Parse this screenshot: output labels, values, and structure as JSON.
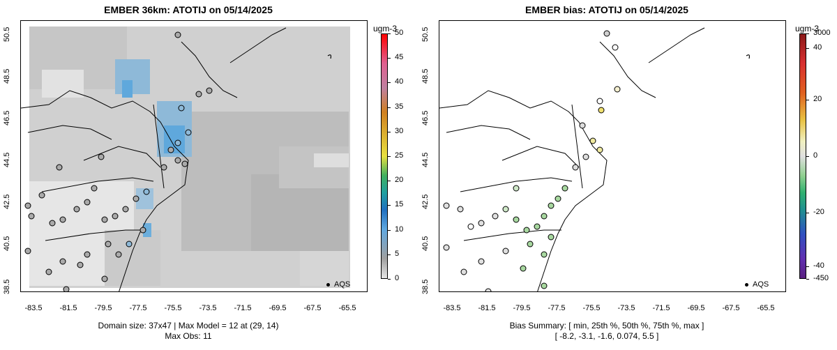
{
  "left": {
    "title": "EMBER 36km: ATOTIJ on 05/14/2025",
    "footer_line1": "Domain size: 37x47 | Max Model = 12 at (29, 14)",
    "footer_line2": "Max Obs: 11",
    "legend_unit": "ugm-3",
    "legend_ticks": [
      "50",
      "45",
      "40",
      "35",
      "30",
      "25",
      "20",
      "15",
      "10",
      "5",
      "0"
    ],
    "legend_values": [
      50,
      45,
      40,
      35,
      30,
      25,
      20,
      15,
      10,
      5,
      0
    ],
    "site_label": "AQS"
  },
  "right": {
    "title": "EMBER bias: ATOTIJ on 05/14/2025",
    "footer_line1": "Bias Summary: [ min, 25th %, 50th %, 75th %, max ]",
    "footer_line2": "[ -8.2,   -3.1,   -1.6,   0.074,   5.5 ]",
    "legend_unit": "ugm-3",
    "legend_ticks": [
      "3000",
      "40",
      "20",
      "0",
      "-20",
      "-40",
      "-450"
    ],
    "site_label": "AQS"
  },
  "axes": {
    "lat_ticks": [
      "50.5",
      "48.5",
      "46.5",
      "44.5",
      "42.5",
      "40.5",
      "38.5"
    ],
    "lon_ticks": [
      "-83.5",
      "-81.5",
      "-79.5",
      "-77.5",
      "-75.5",
      "-73.5",
      "-71.5",
      "-69.5",
      "-67.5",
      "-65.5"
    ],
    "lat_range": [
      38.5,
      50.5
    ],
    "lon_range": [
      -84.5,
      -64.5
    ]
  },
  "colors": {
    "gray_light": "#e6e6e6",
    "gray_mid": "#cfcfcf",
    "gray_dark": "#b0b0b0",
    "blue": "#5fa8dc",
    "green": "#a8d8a0",
    "yellow": "#f0e070"
  }
}
